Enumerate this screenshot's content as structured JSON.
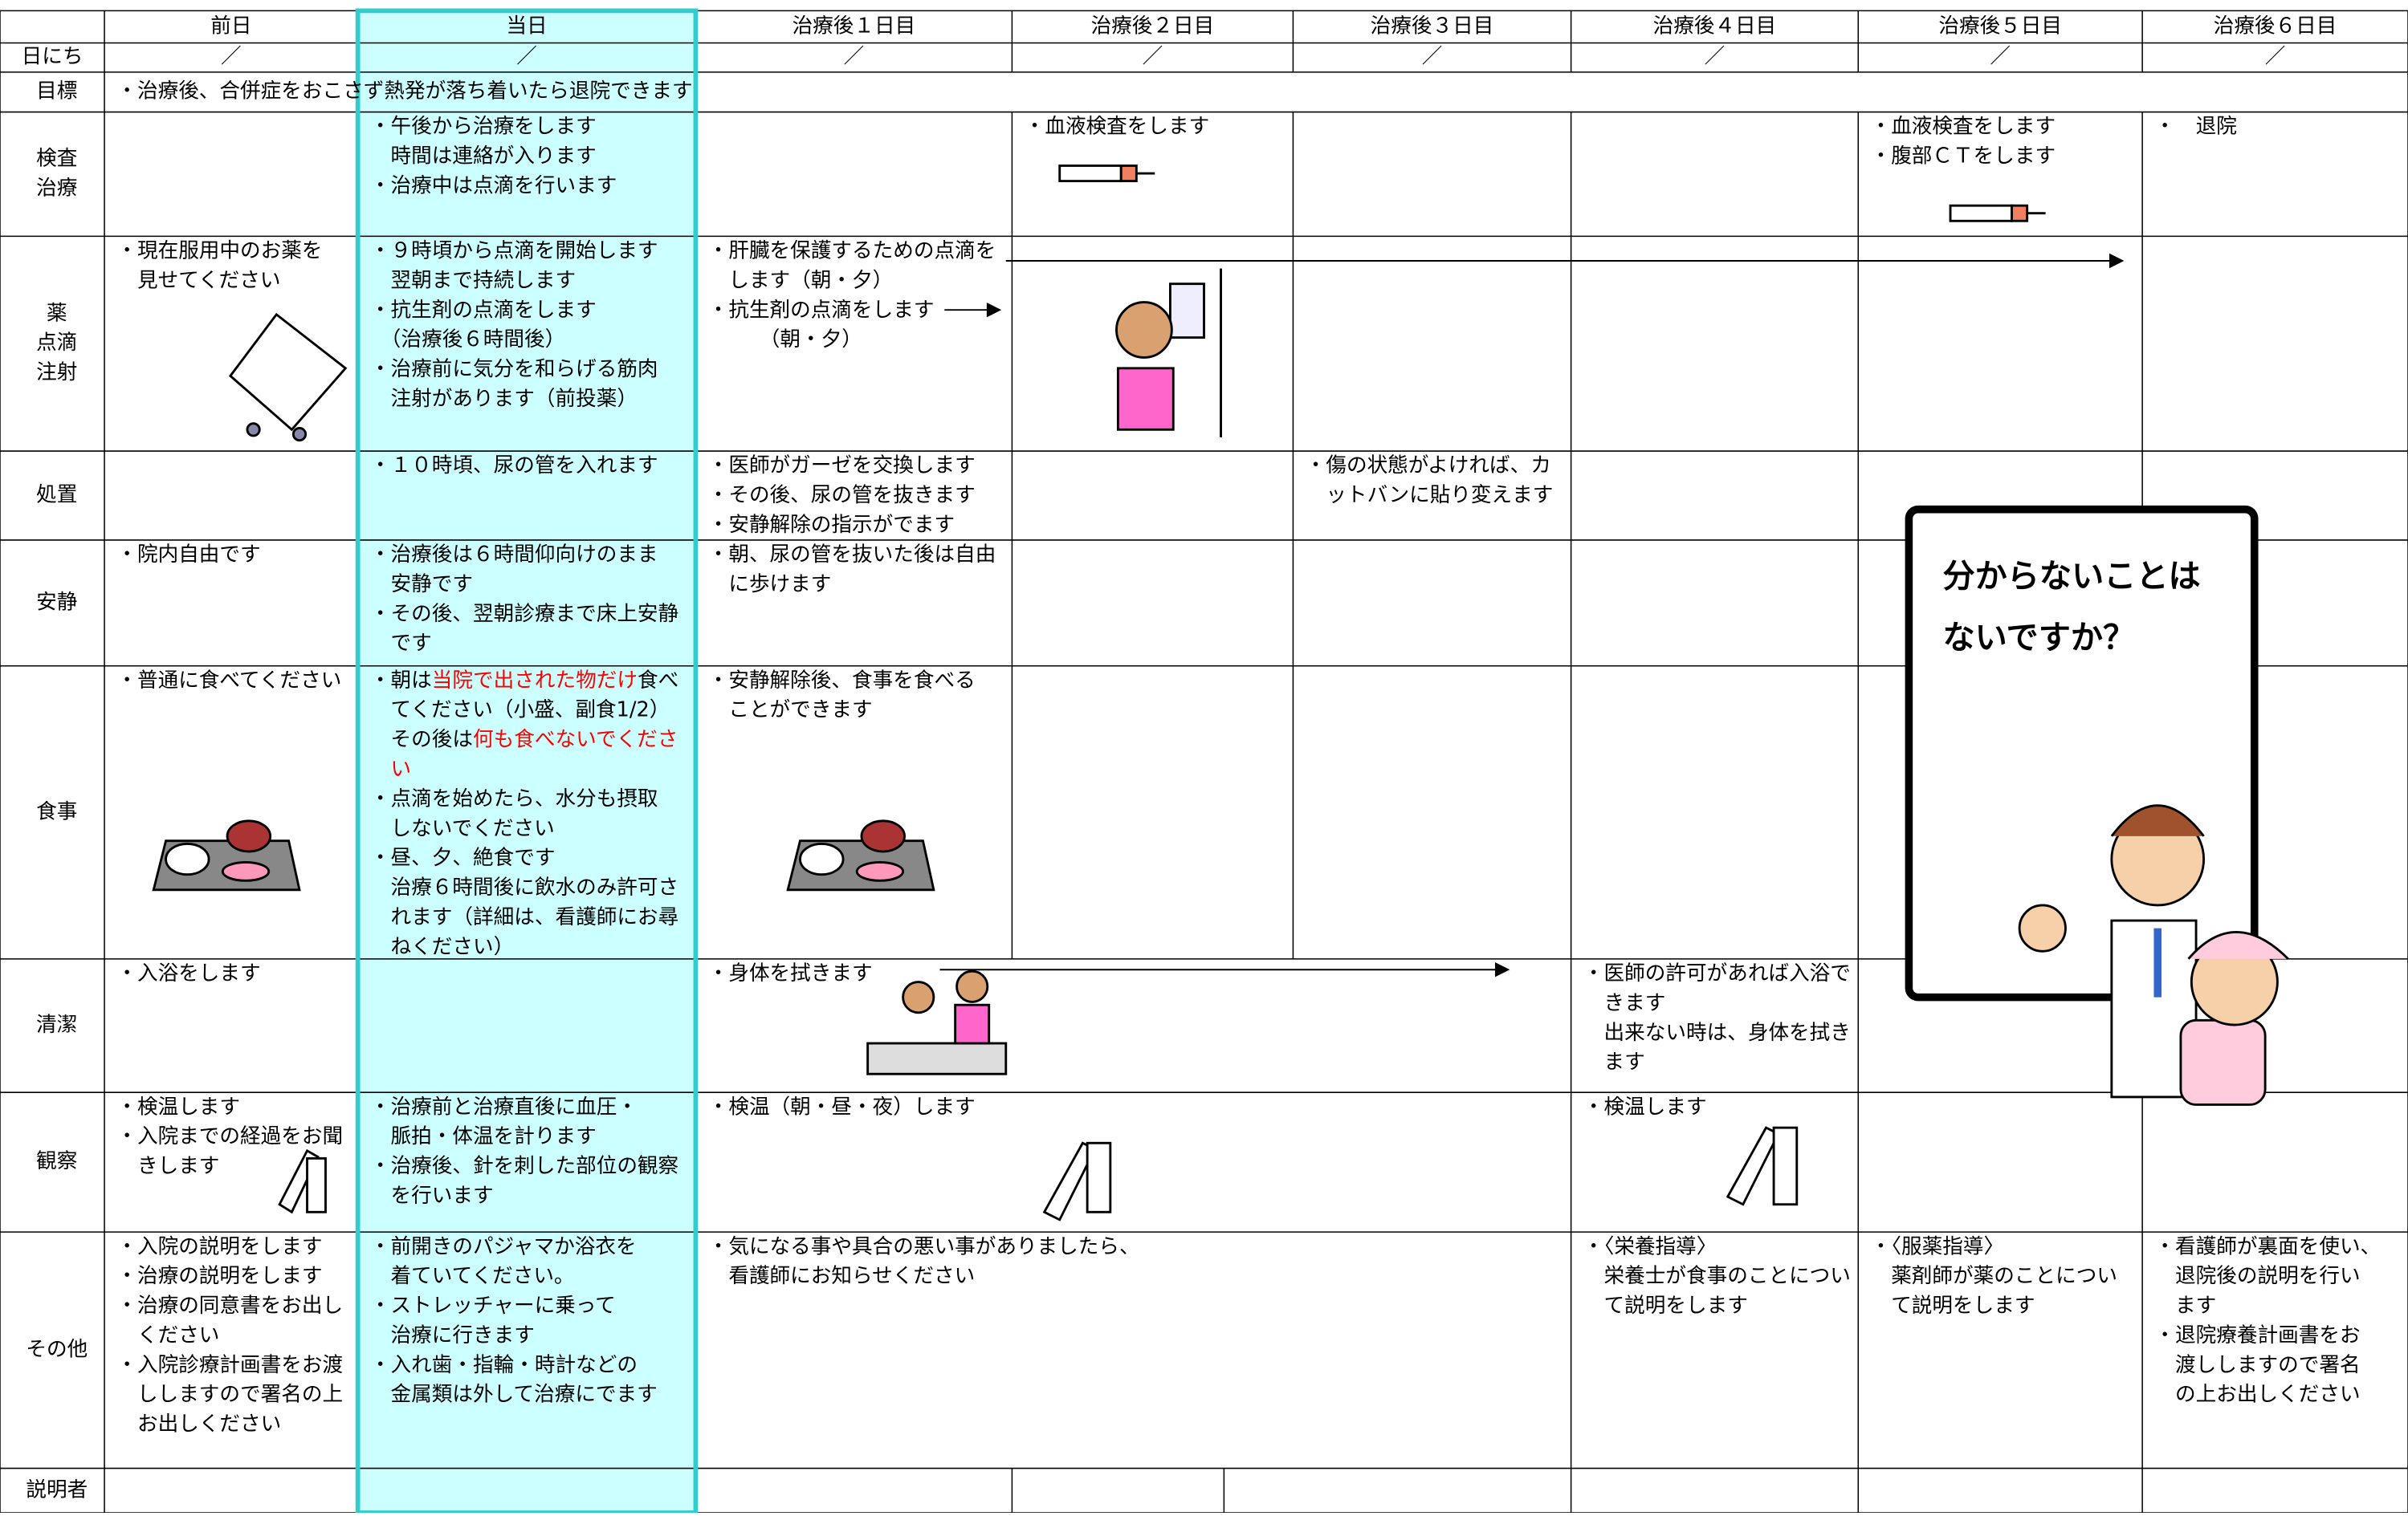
{
  "header": {
    "columns": [
      "前日",
      "当日",
      "治療後１日目",
      "治療後２日目",
      "治療後３日目",
      "治療後４日目",
      "治療後５日目",
      "治療後６日目"
    ]
  },
  "date_row": {
    "label": "日にち",
    "cells": [
      "／",
      "／",
      "／",
      "／",
      "／",
      "／",
      "／",
      "／"
    ]
  },
  "goal_row": {
    "label": "目標",
    "text": "・治療後、合併症をおこさず熱発が落ち着いたら退院できます"
  },
  "rows": [
    {
      "label": [
        "検査",
        "治療"
      ],
      "cells": [
        null,
        [
          "・午後から治療をします",
          "　時間は連絡が入ります",
          "・治療中は点滴を行います"
        ],
        null,
        [
          "・血液検査をします"
        ],
        null,
        null,
        [
          "・血液検査をします",
          "・腹部ＣＴをします"
        ],
        [
          "・　退院"
        ]
      ]
    },
    {
      "label": [
        "薬",
        "点滴",
        "注射"
      ],
      "cells": [
        [
          "・現在服用中のお薬を",
          "　見せてください"
        ],
        [
          "・９時頃から点滴を開始します",
          "　翌朝まで持続します",
          "・抗生剤の点滴をします",
          "　（治療後６時間後）",
          "・治療前に気分を和らげる筋肉",
          "　注射があります（前投薬）"
        ],
        [
          "・肝臓を保護するための点滴を",
          "　します（朝・夕）",
          "・抗生剤の点滴をします",
          "　　　（朝・夕）"
        ],
        null,
        null,
        null,
        null,
        null
      ]
    },
    {
      "label": [
        "処置"
      ],
      "cells": [
        null,
        [
          "・１０時頃、尿の管を入れます"
        ],
        [
          "・医師がガーゼを交換します",
          "・その後、尿の管を抜きます",
          "・安静解除の指示がでます"
        ],
        null,
        [
          "・傷の状態がよければ、カ",
          "　ットバンに貼り変えます"
        ],
        null,
        null,
        null
      ]
    },
    {
      "label": [
        "安静"
      ],
      "cells": [
        [
          "・院内自由です"
        ],
        [
          "・治療後は６時間仰向けのまま",
          "　安静です",
          "・その後、翌朝診療まで床上安静",
          "　です"
        ],
        [
          "・朝、尿の管を抜いた後は自由",
          "　に歩けます"
        ],
        null,
        null,
        null,
        null,
        null
      ]
    },
    {
      "label": [
        "食事"
      ],
      "cells": [
        [
          "・普通に食べてください"
        ],
        [
          [
            "・朝は",
            {
              "text": "当院で出された物だけ",
              "color": "#ff0000"
            },
            "食べ"
          ],
          "　てください（小盛、副食1/2）",
          [
            "　その後は",
            {
              "text": "何も食べないでくださ",
              "color": "#ff0000"
            }
          ],
          [
            {
              "text": "　い",
              "color": "#ff0000"
            }
          ],
          "・点滴を始めたら、水分も摂取",
          "　しないでください",
          "・昼、夕、絶食です",
          "　治療６時間後に飲水のみ許可さ",
          "　れます（詳細は、看護師にお尋",
          "　ねください）"
        ],
        [
          "・安静解除後、食事を食べる",
          "　ことができます"
        ],
        null,
        null,
        null,
        null,
        null
      ]
    },
    {
      "label": [
        "清潔"
      ],
      "cells": [
        [
          "・入浴をします"
        ],
        null,
        [
          "・身体を拭きます"
        ],
        null,
        null,
        [
          "・医師の許可があれば入浴で",
          "　きます",
          "　出来ない時は、身体を拭き",
          "　ます"
        ],
        null,
        null
      ]
    },
    {
      "label": [
        "観察"
      ],
      "cells": [
        [
          "・検温します",
          "・入院までの経過をお聞",
          "　きします"
        ],
        [
          "・治療前と治療直後に血圧・",
          "　脈拍・体温を計ります",
          "・治療後、針を刺した部位の観察",
          "　を行います"
        ],
        [
          "・検温（朝・昼・夜）します"
        ],
        null,
        null,
        [
          "・検温します"
        ],
        null,
        null
      ]
    },
    {
      "label": [
        "その他"
      ],
      "cells": [
        [
          "・入院の説明をします",
          "・治療の説明をします",
          "・治療の同意書をお出し",
          "　ください",
          "・入院診療計画書をお渡",
          "　ししますので署名の上",
          "　お出しください"
        ],
        [
          "・前開きのパジャマか浴衣を",
          "　着ていてください。",
          "・ストレッチャーに乗って",
          "　治療に行きます",
          "・入れ歯・指輪・時計などの",
          "　金属類は外して治療にでます"
        ],
        [
          "・気になる事や具合の悪い事がありましたら、",
          "　看護師にお知らせください"
        ],
        null,
        null,
        [
          "・〈栄養指導〉",
          "　栄養士が食事のことについ",
          "　て説明をします"
        ],
        [
          "・〈服薬指導〉",
          "　薬剤師が薬のことについ",
          "　て説明をします"
        ],
        [
          "・看護師が裏面を使い、",
          "　退院後の説明を行い",
          "　ます",
          "・退院療養計画書をお",
          "　渡ししますので署名",
          "　の上お出しください"
        ]
      ]
    },
    {
      "label": [
        "説明者"
      ],
      "cells": [
        null,
        null,
        null,
        null,
        null,
        null,
        null,
        null
      ]
    }
  ],
  "callout": {
    "lines": [
      "分からないことは",
      "ないですか？"
    ]
  }
}
